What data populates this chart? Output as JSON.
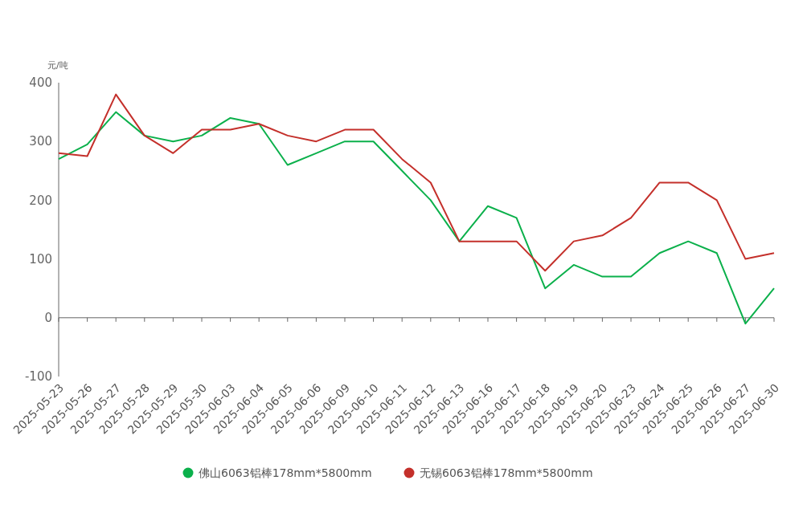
{
  "chart_data": {
    "type": "line",
    "ylabel": "元/吨",
    "categories": [
      "2025-05-23",
      "2025-05-26",
      "2025-05-27",
      "2025-05-28",
      "2025-05-29",
      "2025-05-30",
      "2025-06-03",
      "2025-06-04",
      "2025-06-05",
      "2025-06-06",
      "2025-06-09",
      "2025-06-10",
      "2025-06-11",
      "2025-06-12",
      "2025-06-13",
      "2025-06-16",
      "2025-06-17",
      "2025-06-18",
      "2025-06-19",
      "2025-06-20",
      "2025-06-23",
      "2025-06-24",
      "2025-06-25",
      "2025-06-26",
      "2025-06-27",
      "2025-06-30"
    ],
    "series": [
      {
        "name": "佛山6063铝棒178mm*5800mm",
        "color": "#0bb04b",
        "values": [
          270,
          295,
          350,
          310,
          300,
          310,
          340,
          330,
          260,
          280,
          300,
          300,
          250,
          200,
          130,
          190,
          170,
          50,
          90,
          70,
          70,
          110,
          130,
          110,
          -10,
          50
        ]
      },
      {
        "name": "无锡6063铝棒178mm*5800mm",
        "color": "#c4302b",
        "values": [
          280,
          275,
          380,
          310,
          280,
          320,
          320,
          330,
          310,
          300,
          320,
          320,
          270,
          230,
          130,
          130,
          130,
          80,
          130,
          140,
          170,
          230,
          230,
          200,
          100,
          110
        ]
      }
    ],
    "ylim": [
      -100,
      400
    ],
    "yticks": [
      -100,
      0,
      100,
      200,
      300,
      400
    ],
    "legend": "bottom",
    "marker": "none",
    "line_style": "solid"
  }
}
